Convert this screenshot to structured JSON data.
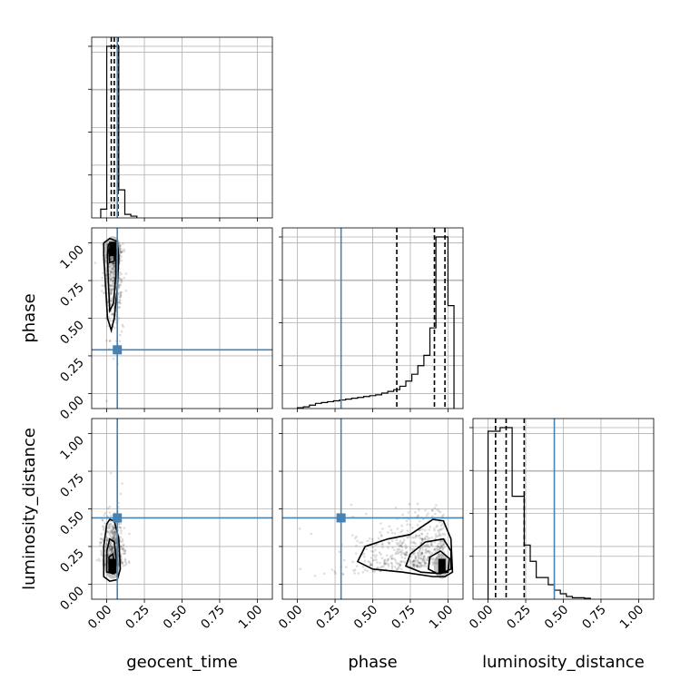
{
  "chart_data": {
    "type": "corner",
    "parameters": [
      "geocent_time",
      "phase",
      "luminosity_distance"
    ],
    "axis_range": [
      -0.1,
      1.1
    ],
    "tick_labels": [
      "0.00",
      "0.25",
      "0.50",
      "0.75",
      "1.00"
    ],
    "truth_values": {
      "geocent_time": 0.07,
      "phase": 0.29,
      "luminosity_distance": 0.44
    },
    "quantiles": {
      "geocent_time": [
        0.03,
        0.05,
        0.075
      ],
      "phase": [
        0.66,
        0.91,
        0.98
      ],
      "luminosity_distance": [
        0.05,
        0.12,
        0.24
      ]
    },
    "histograms": {
      "bin_width": 0.04,
      "geocent_time": {
        "bins": [
          -0.04,
          0.0,
          0.04,
          0.08,
          0.12,
          0.16,
          0.2
        ],
        "heights": [
          0.05,
          0.98,
          0.98,
          0.16,
          0.02,
          0.01
        ]
      },
      "phase": {
        "bins": [
          0.0,
          0.04,
          0.08,
          0.12,
          0.16,
          0.2,
          0.24,
          0.28,
          0.32,
          0.36,
          0.4,
          0.44,
          0.48,
          0.52,
          0.56,
          0.6,
          0.64,
          0.68,
          0.72,
          0.76,
          0.8,
          0.84,
          0.88,
          0.92,
          0.96,
          1.0,
          1.04
        ],
        "heights": [
          0.005,
          0.01,
          0.02,
          0.03,
          0.035,
          0.04,
          0.045,
          0.05,
          0.055,
          0.06,
          0.065,
          0.07,
          0.075,
          0.08,
          0.09,
          0.1,
          0.11,
          0.13,
          0.16,
          0.2,
          0.25,
          0.31,
          0.47,
          1.0,
          1.0,
          0.6
        ]
      },
      "luminosity_distance": {
        "bins": [
          0.0,
          0.04,
          0.08,
          0.12,
          0.16,
          0.2,
          0.24,
          0.28,
          0.32,
          0.36,
          0.4,
          0.44,
          0.48,
          0.52,
          0.56,
          0.6,
          0.64,
          0.68
        ],
        "heights": [
          0.93,
          0.93,
          0.95,
          0.95,
          0.57,
          0.57,
          0.3,
          0.21,
          0.12,
          0.12,
          0.08,
          0.05,
          0.03,
          0.015,
          0.008,
          0.008,
          0.005
        ]
      }
    },
    "correlation_panels": [
      {
        "x": "geocent_time",
        "y": "phase",
        "density_center": [
          0.04,
          0.96
        ],
        "contours": [
          [
            [
              0.005,
              0.5
            ],
            [
              -0.01,
              0.75
            ],
            [
              -0.02,
              0.92
            ],
            [
              -0.02,
              1.0
            ],
            [
              0.02,
              1.03
            ],
            [
              0.07,
              1.01
            ],
            [
              0.08,
              0.9
            ],
            [
              0.07,
              0.7
            ],
            [
              0.05,
              0.5
            ],
            [
              0.03,
              0.42
            ]
          ],
          [
            [
              0.02,
              0.55
            ],
            [
              0.01,
              0.75
            ],
            [
              0.005,
              0.92
            ],
            [
              0.01,
              0.99
            ],
            [
              0.04,
              1.0
            ],
            [
              0.06,
              0.96
            ],
            [
              0.06,
              0.78
            ],
            [
              0.045,
              0.6
            ]
          ],
          [
            [
              0.02,
              0.87
            ],
            [
              0.015,
              0.95
            ],
            [
              0.03,
              0.99
            ],
            [
              0.05,
              0.97
            ],
            [
              0.05,
              0.88
            ]
          ]
        ]
      },
      {
        "x": "geocent_time",
        "y": "luminosity_distance",
        "density_center": [
          0.04,
          0.12
        ],
        "contours": [
          [
            [
              -0.02,
              0.05
            ],
            [
              -0.02,
              0.25
            ],
            [
              0.0,
              0.4
            ],
            [
              0.02,
              0.43
            ],
            [
              0.05,
              0.42
            ],
            [
              0.08,
              0.3
            ],
            [
              0.09,
              0.1
            ],
            [
              0.07,
              0.03
            ],
            [
              0.02,
              0.02
            ]
          ],
          [
            [
              0.0,
              0.08
            ],
            [
              0.0,
              0.22
            ],
            [
              0.02,
              0.3
            ],
            [
              0.05,
              0.28
            ],
            [
              0.065,
              0.15
            ],
            [
              0.05,
              0.07
            ]
          ],
          [
            [
              0.015,
              0.08
            ],
            [
              0.015,
              0.18
            ],
            [
              0.04,
              0.2
            ],
            [
              0.055,
              0.12
            ],
            [
              0.04,
              0.07
            ]
          ]
        ]
      },
      {
        "x": "phase",
        "y": "luminosity_distance",
        "density_center": [
          0.96,
          0.12
        ],
        "contours": [
          [
            [
              0.4,
              0.15
            ],
            [
              0.45,
              0.25
            ],
            [
              0.6,
              0.3
            ],
            [
              0.75,
              0.33
            ],
            [
              0.9,
              0.43
            ],
            [
              0.97,
              0.42
            ],
            [
              1.02,
              0.3
            ],
            [
              1.03,
              0.08
            ],
            [
              0.98,
              0.05
            ],
            [
              0.9,
              0.05
            ],
            [
              0.7,
              0.08
            ],
            [
              0.5,
              0.1
            ]
          ],
          [
            [
              0.72,
              0.12
            ],
            [
              0.75,
              0.2
            ],
            [
              0.85,
              0.28
            ],
            [
              0.97,
              0.3
            ],
            [
              1.02,
              0.22
            ],
            [
              1.02,
              0.1
            ],
            [
              0.95,
              0.07
            ],
            [
              0.82,
              0.08
            ]
          ],
          [
            [
              0.87,
              0.1
            ],
            [
              0.88,
              0.18
            ],
            [
              0.95,
              0.22
            ],
            [
              1.01,
              0.17
            ],
            [
              1.0,
              0.08
            ],
            [
              0.93,
              0.07
            ]
          ]
        ]
      }
    ],
    "grid": true
  }
}
